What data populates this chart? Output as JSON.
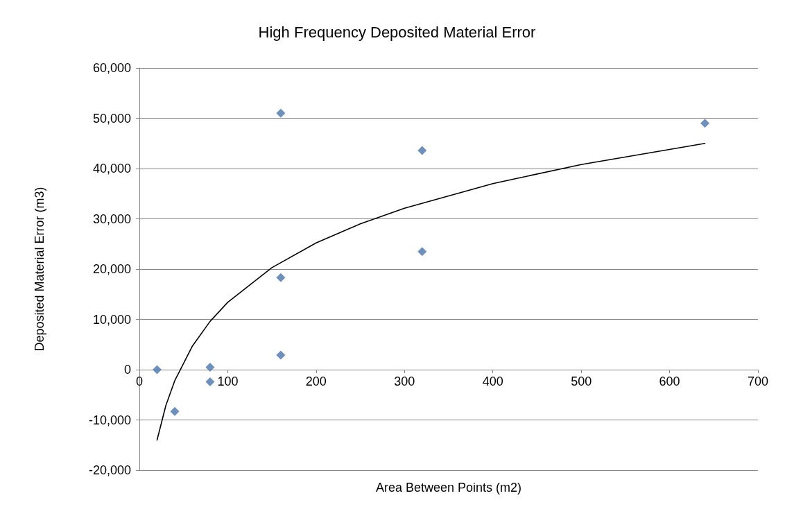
{
  "chart_data": {
    "type": "scatter",
    "title": "High Frequency Deposited Material Error",
    "xlabel": "Area Between Points (m2)",
    "ylabel": "Deposited Material Error (m3)",
    "xlim": [
      0,
      700
    ],
    "xticks": [
      0,
      100,
      200,
      300,
      400,
      500,
      600,
      700
    ],
    "ylim": [
      -20000,
      60000
    ],
    "yticks": [
      {
        "value": -20000,
        "label": "-20,000"
      },
      {
        "value": -10000,
        "label": "-10,000"
      },
      0,
      {
        "value": 10000,
        "label": "10,000"
      },
      {
        "value": 20000,
        "label": "20,000"
      },
      {
        "value": 30000,
        "label": "30,000"
      },
      {
        "value": 40000,
        "label": "40,000"
      },
      {
        "value": 50000,
        "label": "50,000"
      },
      {
        "value": 60000,
        "label": "60,000"
      }
    ],
    "grid": "y",
    "series": [
      {
        "type": "scatter",
        "marker": "diamond",
        "color": "#4a74ab",
        "x": [
          20,
          40,
          80,
          80,
          160,
          160,
          160,
          320,
          320,
          640
        ],
        "values": [
          0,
          -8300,
          500,
          -2400,
          51000,
          18300,
          2900,
          43600,
          23500,
          49000
        ]
      },
      {
        "type": "line",
        "marker": "none",
        "line_style": "solid",
        "color": "#000000",
        "x": [
          20,
          30,
          40,
          60,
          80,
          100,
          150,
          200,
          250,
          300,
          400,
          500,
          640
        ],
        "values": [
          -14000,
          -7100,
          -2200,
          4700,
          9600,
          13400,
          20300,
          25200,
          29000,
          32100,
          37000,
          40800,
          45000
        ]
      }
    ]
  }
}
